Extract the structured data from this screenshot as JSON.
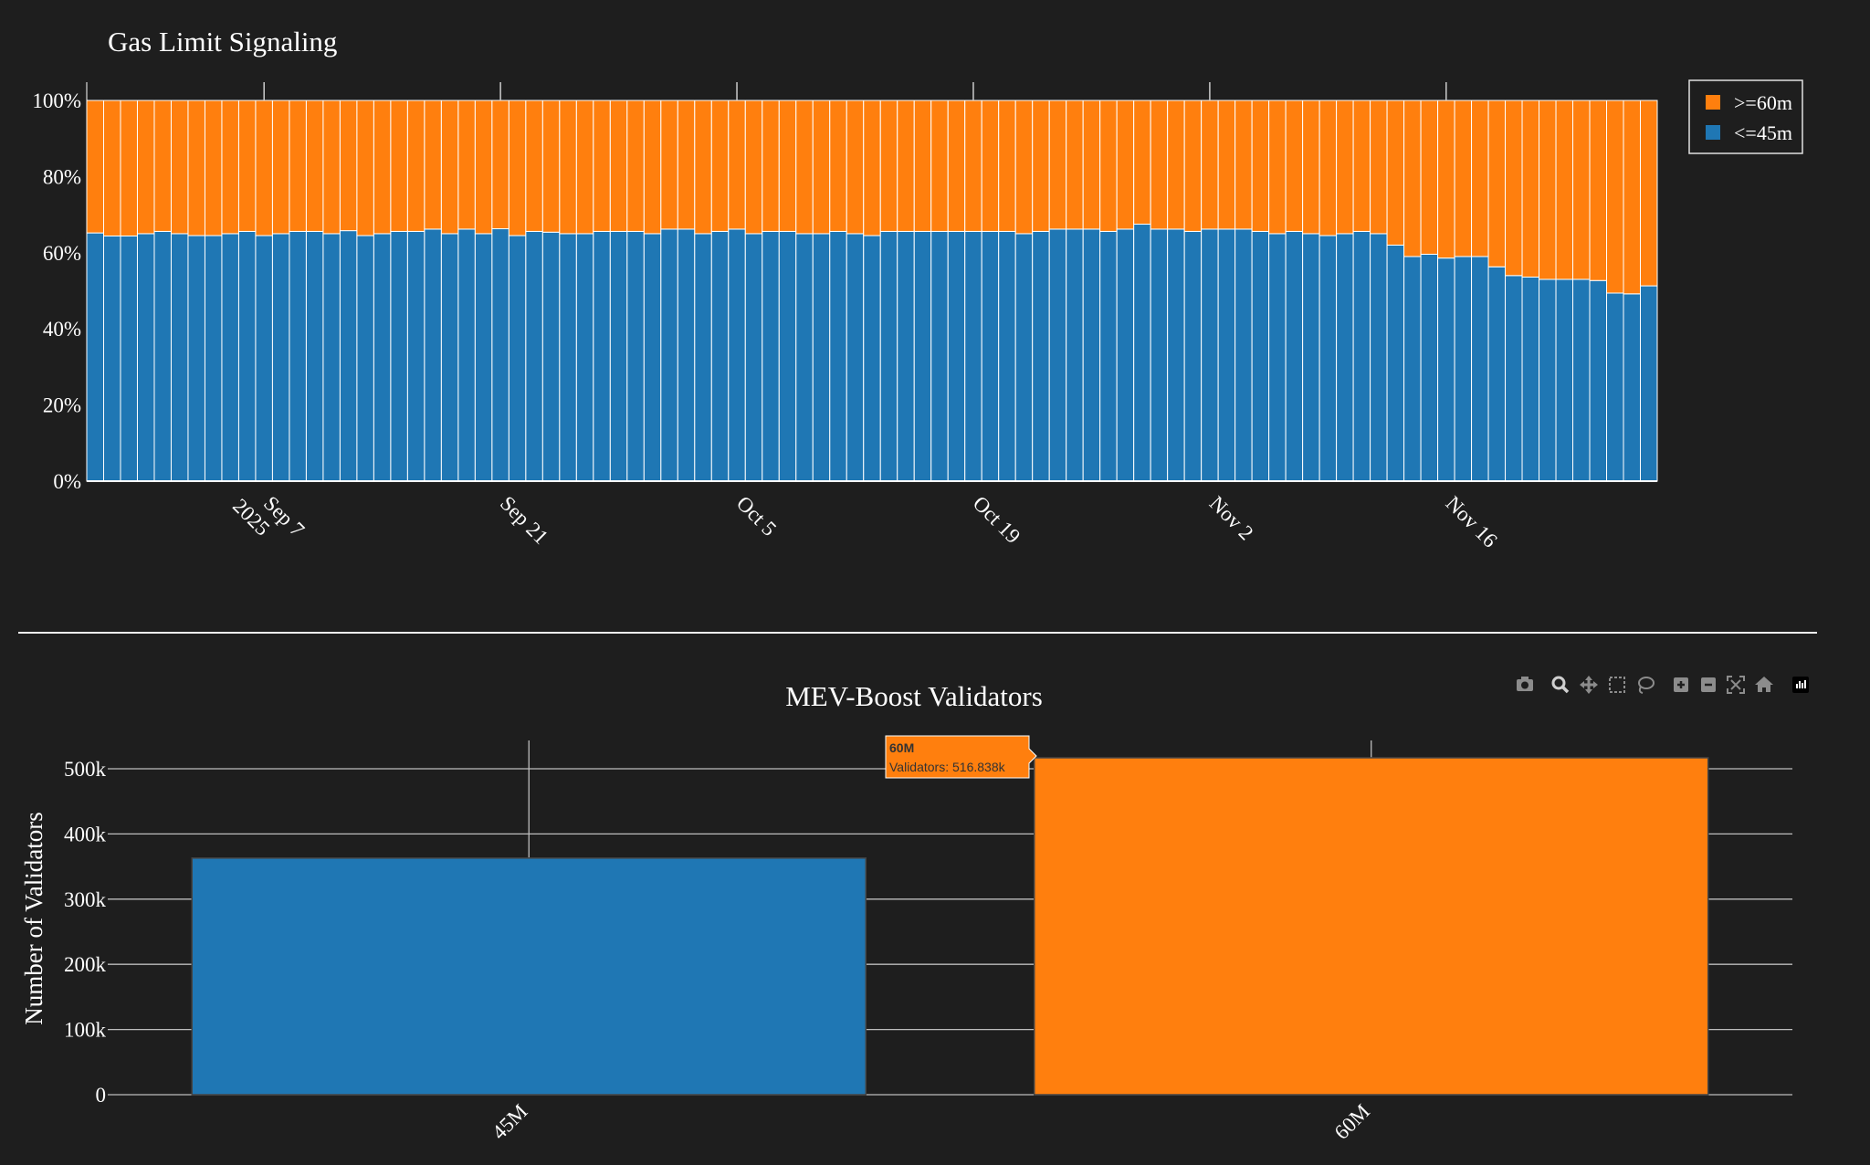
{
  "chart_data": [
    {
      "type": "bar",
      "stacked": "percent",
      "title": "Gas Limit Signaling",
      "xlabel": "",
      "ylabel": "",
      "ylim": [
        0,
        100
      ],
      "y_ticks": [
        "0%",
        "20%",
        "40%",
        "60%",
        "80%",
        "100%"
      ],
      "x_ticks": [
        {
          "label": "Sep 7",
          "sublabel": "2025",
          "index": 10
        },
        {
          "label": "Sep 21",
          "sublabel": "",
          "index": 24
        },
        {
          "label": "Oct 5",
          "sublabel": "",
          "index": 38
        },
        {
          "label": "Oct 19",
          "sublabel": "",
          "index": 52
        },
        {
          "label": "Nov 2",
          "sublabel": "",
          "index": 66
        },
        {
          "label": "Nov 16",
          "sublabel": "",
          "index": 80
        }
      ],
      "legend": [
        {
          "name": ">=60m",
          "color": "#ff7f0e"
        },
        {
          "name": "<=45m",
          "color": "#1f77b4"
        }
      ],
      "legend_position": "top-right",
      "series": [
        {
          "name": "<=45m",
          "color": "#1f77b4",
          "values": [
            65.2,
            64.4,
            64.4,
            65,
            65.6,
            65,
            64.5,
            64.5,
            65,
            65.6,
            64.5,
            65,
            65.6,
            65.6,
            65,
            65.8,
            64.5,
            65,
            65.6,
            65.6,
            66.2,
            65,
            66.2,
            65,
            66.3,
            64.5,
            65.6,
            65.4,
            65,
            65,
            65.6,
            65.6,
            65.6,
            65,
            66.2,
            66.2,
            65,
            65.6,
            66.2,
            65,
            65.6,
            65.6,
            65,
            65,
            65.6,
            65,
            64.5,
            65.6,
            65.6,
            65.6,
            65.6,
            65.6,
            65.6,
            65.6,
            65.6,
            65,
            65.6,
            66.2,
            66.2,
            66.2,
            65.6,
            66.2,
            67.5,
            66.2,
            66.2,
            65.6,
            66.2,
            66.2,
            66.2,
            65.6,
            65,
            65.6,
            65,
            64.5,
            65,
            65.6,
            65,
            62,
            59,
            59.6,
            58.6,
            59,
            59,
            56.3,
            54,
            53.6,
            53,
            53,
            53,
            52.7,
            49.4,
            49.2,
            51.3
          ]
        },
        {
          "name": ">=60m",
          "color": "#ff7f0e",
          "values": "remainder to 100%"
        }
      ]
    },
    {
      "type": "bar",
      "title": "MEV-Boost Validators",
      "xlabel": "",
      "ylabel": "Number of Validators",
      "ylim": [
        0,
        550000
      ],
      "y_ticks": [
        {
          "label": "0",
          "value": 0
        },
        {
          "label": "100k",
          "value": 100000
        },
        {
          "label": "200k",
          "value": 200000
        },
        {
          "label": "300k",
          "value": 300000
        },
        {
          "label": "400k",
          "value": 400000
        },
        {
          "label": "500k",
          "value": 500000
        }
      ],
      "categories": [
        "45M",
        "60M"
      ],
      "values": [
        363000,
        516838
      ],
      "colors": [
        "#1f77b4",
        "#ff7f0e"
      ],
      "hover": {
        "title": "60M",
        "text": "Validators: 516.838k"
      }
    }
  ],
  "toolbar": {
    "buttons": [
      "camera-icon",
      "zoom-icon",
      "pan-icon",
      "box-select-icon",
      "lasso-icon",
      "zoom-in-icon",
      "zoom-out-icon",
      "autoscale-icon",
      "reset-axes-icon",
      "plotly-logo-icon"
    ]
  }
}
